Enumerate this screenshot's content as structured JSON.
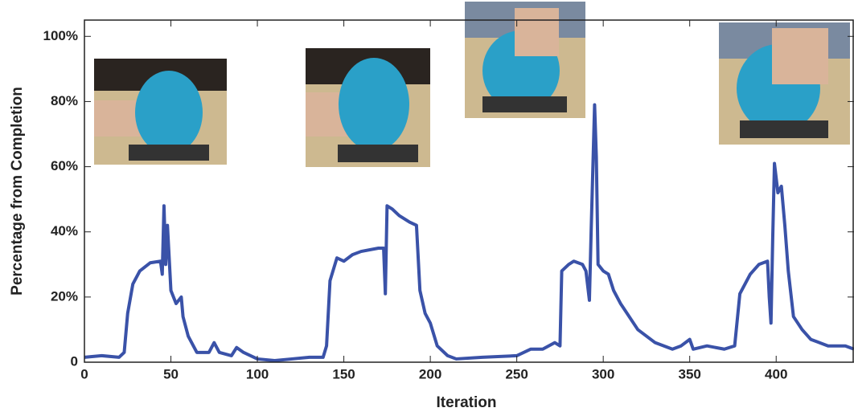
{
  "chart_data": {
    "type": "line",
    "xlabel": "Iteration",
    "ylabel": "Percentage from Completion",
    "xlim": [
      0,
      445
    ],
    "ylim": [
      0,
      105
    ],
    "xticks": [
      0,
      50,
      100,
      150,
      200,
      250,
      300,
      350,
      400
    ],
    "yticks": [
      0,
      {
        "value": 20,
        "label": "20%"
      },
      {
        "value": 40,
        "label": "40%"
      },
      {
        "value": 60,
        "label": "60%"
      },
      {
        "value": 80,
        "label": "80%"
      },
      {
        "value": 100,
        "label": "100%"
      }
    ],
    "x": [
      0,
      10,
      20,
      23,
      25,
      28,
      32,
      38,
      44,
      45,
      46,
      47,
      48,
      50,
      53,
      56,
      57,
      60,
      65,
      72,
      75,
      78,
      85,
      88,
      92,
      100,
      110,
      120,
      130,
      138,
      140,
      142,
      146,
      150,
      155,
      160,
      170,
      173,
      174,
      175,
      178,
      182,
      188,
      192,
      194,
      197,
      200,
      204,
      210,
      215,
      230,
      250,
      258,
      265,
      272,
      275,
      276,
      280,
      283,
      288,
      290,
      292,
      293,
      295,
      296,
      297,
      300,
      303,
      306,
      310,
      320,
      330,
      340,
      345,
      350,
      352,
      360,
      370,
      376,
      379,
      385,
      390,
      395,
      396,
      397,
      398,
      399,
      401,
      403,
      405,
      407,
      410,
      415,
      420,
      430,
      440,
      445
    ],
    "series": [
      {
        "name": "Percentage from Completion",
        "color": "#3a52a8",
        "values": [
          1.5,
          2,
          1.5,
          3,
          15,
          24,
          28,
          30.5,
          31,
          27,
          48,
          30,
          42,
          22,
          18,
          20,
          14,
          8,
          3,
          3,
          6,
          3,
          2,
          4.5,
          3,
          1,
          0.5,
          1,
          1.5,
          1.5,
          5,
          25,
          32,
          31,
          33,
          34,
          35,
          35,
          21,
          48,
          47,
          45,
          43,
          42,
          22,
          15,
          12,
          5,
          2,
          1,
          1.5,
          2,
          4,
          4,
          6,
          5,
          28,
          30,
          31,
          30,
          28,
          19,
          40,
          79,
          63,
          30,
          28,
          27,
          22,
          18,
          10,
          6,
          4,
          5,
          7,
          4,
          5,
          4,
          5,
          21,
          27,
          30,
          31,
          20,
          12,
          38,
          61,
          52,
          54,
          42,
          28,
          14,
          10,
          7,
          5,
          5,
          4
        ]
      }
    ]
  }
}
